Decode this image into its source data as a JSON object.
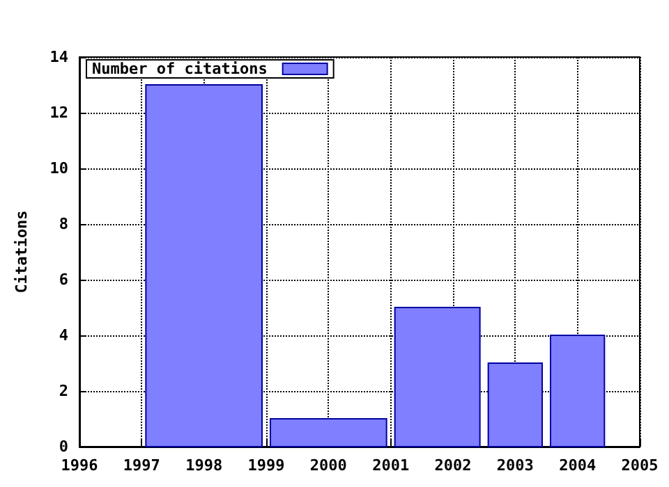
{
  "chart_data": {
    "type": "histogram",
    "ylabel": "Citations",
    "bins": [
      1997,
      1999,
      2001,
      2002.5,
      2003.5,
      2004.5
    ],
    "series": [
      {
        "name": "Number of citations",
        "color": "#7f7fff",
        "values": [
          13,
          1,
          5,
          3,
          4
        ]
      }
    ],
    "xlim": [
      1996,
      2005
    ],
    "xticks": [
      1996,
      1997,
      1998,
      1999,
      2000,
      2001,
      2002,
      2003,
      2004,
      2005
    ],
    "ylim": [
      0,
      14
    ],
    "yticks": [
      0,
      2,
      4,
      6,
      8,
      10,
      12,
      14
    ],
    "grid": true,
    "line_style": "dotted",
    "legend": "top left"
  }
}
